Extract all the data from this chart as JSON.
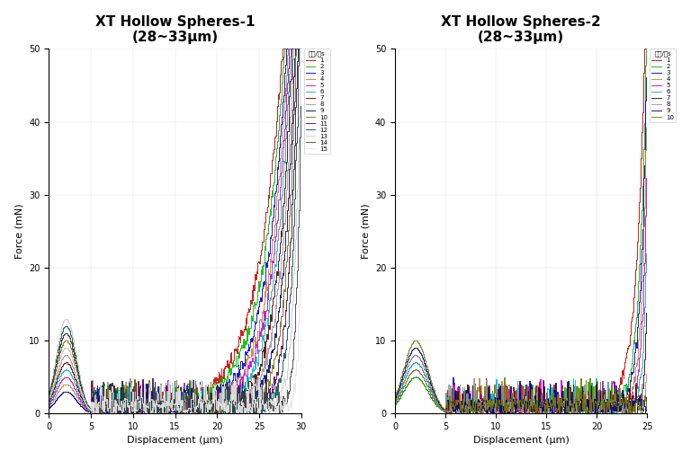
{
  "title1": "XT Hollow Spheres-1",
  "title2": "XT Hollow Spheres-2",
  "subtitle": "(28~33μm)",
  "xlabel": "Displacement (μm)",
  "ylabel": "Force (mN)",
  "legend_title": "粒数/粒s",
  "xlim1": [
    0,
    30
  ],
  "xlim2": [
    0,
    25
  ],
  "ylim": [
    0,
    50
  ],
  "xticks1": [
    0,
    5,
    10,
    15,
    20,
    25,
    30
  ],
  "xticks2": [
    0,
    5,
    10,
    15,
    20,
    25
  ],
  "yticks": [
    0,
    10,
    20,
    30,
    40,
    50
  ],
  "colors15": [
    "#cc0000",
    "#00bb00",
    "#0000cc",
    "#bb8833",
    "#cc00cc",
    "#00bbbb",
    "#550000",
    "#999999",
    "#000077",
    "#777700",
    "#550055",
    "#005555",
    "#cccccc",
    "#444444",
    "#e8e8e8"
  ],
  "colors10": [
    "#cc0000",
    "#00bb00",
    "#0000cc",
    "#bb8833",
    "#cc00cc",
    "#00bbbb",
    "#550000",
    "#999999",
    "#000077",
    "#777700"
  ],
  "n_lines1": 15,
  "n_lines2": 10,
  "rise_points1": [
    13.5,
    15.0,
    16.5,
    17.5,
    18.5,
    19.5,
    20.5,
    21.5,
    22.5,
    23.5,
    24.5,
    25.5,
    26.5,
    27.5,
    28.5
  ],
  "peak_heights1": [
    3,
    3,
    3,
    4,
    5,
    6,
    7,
    8,
    9,
    10,
    11,
    12,
    13,
    11,
    9
  ],
  "rise_points2": [
    20.5,
    21.5,
    22.0,
    22.5,
    23.0,
    23.5,
    24.0,
    24.5,
    24.8,
    25.0
  ],
  "peak_heights2": [
    5,
    5,
    6,
    6,
    7,
    7,
    8,
    8,
    9,
    10
  ]
}
